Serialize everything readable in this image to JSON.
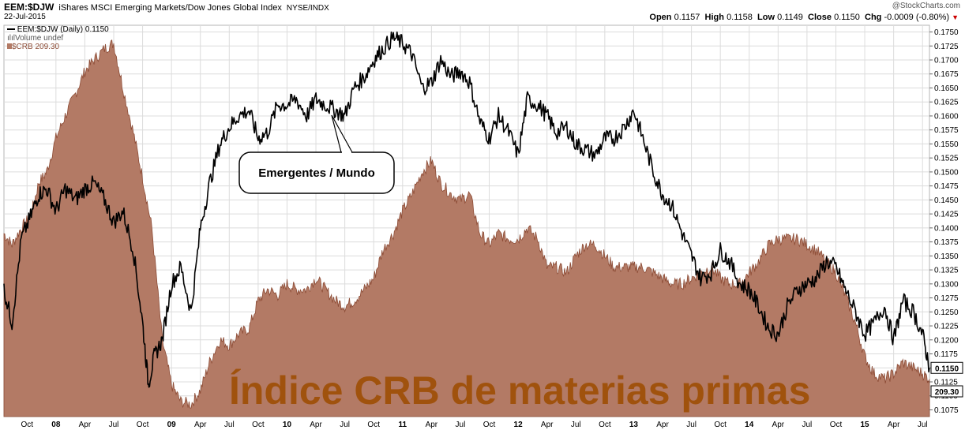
{
  "header": {
    "symbol": "EEM:$DJW",
    "description": "iShares MSCI Emerging Markets/Dow Jones Global Index",
    "exchange": "NYSE/INDX",
    "date": "22-Jul-2015",
    "watermark": "@StockCharts.com",
    "ohlc": {
      "open_label": "Open",
      "open": "0.1157",
      "high_label": "High",
      "high": "0.1158",
      "low_label": "Low",
      "low": "0.1149",
      "close_label": "Close",
      "close": "0.1150",
      "chg_label": "Chg",
      "chg": "-0.0009 (-0.80%)"
    }
  },
  "legend": {
    "ratio": "EEM:$DJW (Daily) 0.1150",
    "volume": "Volume undef",
    "crb": "$CRB 209.30"
  },
  "annotation": "Emergentes / Mundo",
  "overlay_title": "Índice CRB de materias primas",
  "colors": {
    "ratio_line": "#000000",
    "crb_fill": "#b37a65",
    "crb_stroke": "#8c4b35",
    "overlay_text": "#a0520d",
    "grid": "#dcdcdc",
    "tag_bg": "#ffffff"
  },
  "chart_data": {
    "type": "area",
    "title": "EEM:$DJW iShares MSCI Emerging Markets/Dow Jones Global Index",
    "x_tick_labels": [
      "Oct",
      "08",
      "Apr",
      "Jul",
      "Oct",
      "09",
      "Apr",
      "Jul",
      "Oct",
      "10",
      "Apr",
      "Jul",
      "Oct",
      "11",
      "Apr",
      "Jul",
      "Oct",
      "12",
      "Apr",
      "Jul",
      "Oct",
      "13",
      "Apr",
      "Jul",
      "Oct",
      "14",
      "Apr",
      "Jul",
      "Oct",
      "15",
      "Apr",
      "Jul"
    ],
    "x_tick_years": [
      "08",
      "09",
      "10",
      "11",
      "12",
      "13",
      "14",
      "15"
    ],
    "x_range": [
      2007.55,
      2015.56
    ],
    "y_ticks": [
      "0.1075",
      "0.1100",
      "0.1125",
      "0.1150",
      "0.1175",
      "0.1200",
      "0.1225",
      "0.1250",
      "0.1275",
      "0.1300",
      "0.1325",
      "0.1350",
      "0.1375",
      "0.1400",
      "0.1425",
      "0.1450",
      "0.1475",
      "0.1500",
      "0.1525",
      "0.1550",
      "0.1575",
      "0.1600",
      "0.1625",
      "0.1650",
      "0.1675",
      "0.1700",
      "0.1725",
      "0.1750"
    ],
    "ylim": [
      0.1063,
      0.1762
    ],
    "last_value_tags": [
      "0.1150",
      "209.30"
    ],
    "series": [
      {
        "name": "EEM:$DJW",
        "kind": "line",
        "axis": "right",
        "x": [
          2007.55,
          2007.62,
          2007.7,
          2007.78,
          2007.85,
          2007.92,
          2008.0,
          2008.08,
          2008.17,
          2008.25,
          2008.33,
          2008.42,
          2008.5,
          2008.58,
          2008.67,
          2008.75,
          2008.8,
          2008.85,
          2008.92,
          2009.0,
          2009.08,
          2009.17,
          2009.25,
          2009.33,
          2009.42,
          2009.5,
          2009.58,
          2009.67,
          2009.75,
          2009.83,
          2009.92,
          2010.0,
          2010.08,
          2010.17,
          2010.25,
          2010.33,
          2010.42,
          2010.5,
          2010.58,
          2010.67,
          2010.75,
          2010.83,
          2010.92,
          2011.0,
          2011.08,
          2011.17,
          2011.25,
          2011.33,
          2011.42,
          2011.5,
          2011.58,
          2011.67,
          2011.75,
          2011.83,
          2011.92,
          2012.0,
          2012.08,
          2012.17,
          2012.25,
          2012.33,
          2012.42,
          2012.5,
          2012.58,
          2012.67,
          2012.75,
          2012.83,
          2012.92,
          2013.0,
          2013.08,
          2013.17,
          2013.25,
          2013.33,
          2013.42,
          2013.5,
          2013.58,
          2013.67,
          2013.75,
          2013.83,
          2013.92,
          2014.0,
          2014.08,
          2014.17,
          2014.25,
          2014.33,
          2014.42,
          2014.5,
          2014.58,
          2014.67,
          2014.75,
          2014.83,
          2014.92,
          2015.0,
          2015.08,
          2015.17,
          2015.25,
          2015.33,
          2015.42,
          2015.5,
          2015.56
        ],
        "values": [
          0.129,
          0.123,
          0.138,
          0.142,
          0.146,
          0.147,
          0.143,
          0.147,
          0.145,
          0.147,
          0.148,
          0.145,
          0.141,
          0.143,
          0.136,
          0.123,
          0.112,
          0.117,
          0.12,
          0.13,
          0.133,
          0.125,
          0.14,
          0.148,
          0.155,
          0.158,
          0.16,
          0.161,
          0.156,
          0.157,
          0.162,
          0.162,
          0.163,
          0.16,
          0.163,
          0.162,
          0.161,
          0.16,
          0.165,
          0.167,
          0.17,
          0.172,
          0.174,
          0.173,
          0.171,
          0.165,
          0.166,
          0.17,
          0.167,
          0.168,
          0.166,
          0.159,
          0.156,
          0.16,
          0.157,
          0.153,
          0.163,
          0.162,
          0.16,
          0.157,
          0.158,
          0.155,
          0.154,
          0.153,
          0.156,
          0.156,
          0.158,
          0.161,
          0.156,
          0.15,
          0.146,
          0.144,
          0.139,
          0.135,
          0.131,
          0.132,
          0.136,
          0.134,
          0.13,
          0.129,
          0.126,
          0.122,
          0.121,
          0.126,
          0.129,
          0.13,
          0.131,
          0.134,
          0.133,
          0.129,
          0.125,
          0.121,
          0.123,
          0.126,
          0.12,
          0.127,
          0.125,
          0.121,
          0.115
        ]
      },
      {
        "name": "$CRB",
        "kind": "area",
        "axis": "overlay",
        "x": [
          2007.55,
          2007.62,
          2007.7,
          2007.78,
          2007.85,
          2007.92,
          2008.0,
          2008.08,
          2008.17,
          2008.25,
          2008.33,
          2008.42,
          2008.5,
          2008.58,
          2008.67,
          2008.75,
          2008.83,
          2008.92,
          2009.0,
          2009.08,
          2009.17,
          2009.25,
          2009.33,
          2009.42,
          2009.5,
          2009.58,
          2009.67,
          2009.75,
          2009.83,
          2009.92,
          2010.0,
          2010.08,
          2010.17,
          2010.25,
          2010.33,
          2010.42,
          2010.5,
          2010.58,
          2010.67,
          2010.75,
          2010.83,
          2010.92,
          2011.0,
          2011.08,
          2011.17,
          2011.25,
          2011.33,
          2011.42,
          2011.5,
          2011.58,
          2011.67,
          2011.75,
          2011.83,
          2011.92,
          2012.0,
          2012.08,
          2012.17,
          2012.25,
          2012.33,
          2012.42,
          2012.5,
          2012.58,
          2012.67,
          2012.75,
          2012.83,
          2012.92,
          2013.0,
          2013.08,
          2013.17,
          2013.25,
          2013.33,
          2013.42,
          2013.5,
          2013.58,
          2013.67,
          2013.75,
          2013.83,
          2013.92,
          2014.0,
          2014.08,
          2014.17,
          2014.25,
          2014.33,
          2014.42,
          2014.5,
          2014.58,
          2014.67,
          2014.75,
          2014.83,
          2014.92,
          2015.0,
          2015.08,
          2015.17,
          2015.25,
          2015.33,
          2015.42,
          2015.5,
          2015.56
        ],
        "values": [
          0.139,
          0.137,
          0.14,
          0.142,
          0.148,
          0.15,
          0.156,
          0.16,
          0.164,
          0.168,
          0.17,
          0.172,
          0.173,
          0.165,
          0.157,
          0.149,
          0.14,
          0.12,
          0.112,
          0.109,
          0.1085,
          0.111,
          0.116,
          0.12,
          0.119,
          0.121,
          0.122,
          0.127,
          0.129,
          0.128,
          0.13,
          0.129,
          0.129,
          0.131,
          0.129,
          0.127,
          0.126,
          0.127,
          0.129,
          0.131,
          0.136,
          0.139,
          0.143,
          0.146,
          0.15,
          0.152,
          0.148,
          0.146,
          0.145,
          0.146,
          0.139,
          0.137,
          0.139,
          0.138,
          0.138,
          0.14,
          0.138,
          0.133,
          0.133,
          0.132,
          0.135,
          0.137,
          0.137,
          0.135,
          0.133,
          0.133,
          0.133,
          0.133,
          0.132,
          0.131,
          0.13,
          0.13,
          0.131,
          0.132,
          0.133,
          0.131,
          0.13,
          0.13,
          0.132,
          0.134,
          0.137,
          0.138,
          0.138,
          0.138,
          0.137,
          0.136,
          0.134,
          0.132,
          0.128,
          0.123,
          0.117,
          0.114,
          0.113,
          0.114,
          0.116,
          0.115,
          0.114,
          0.113
        ]
      }
    ]
  }
}
